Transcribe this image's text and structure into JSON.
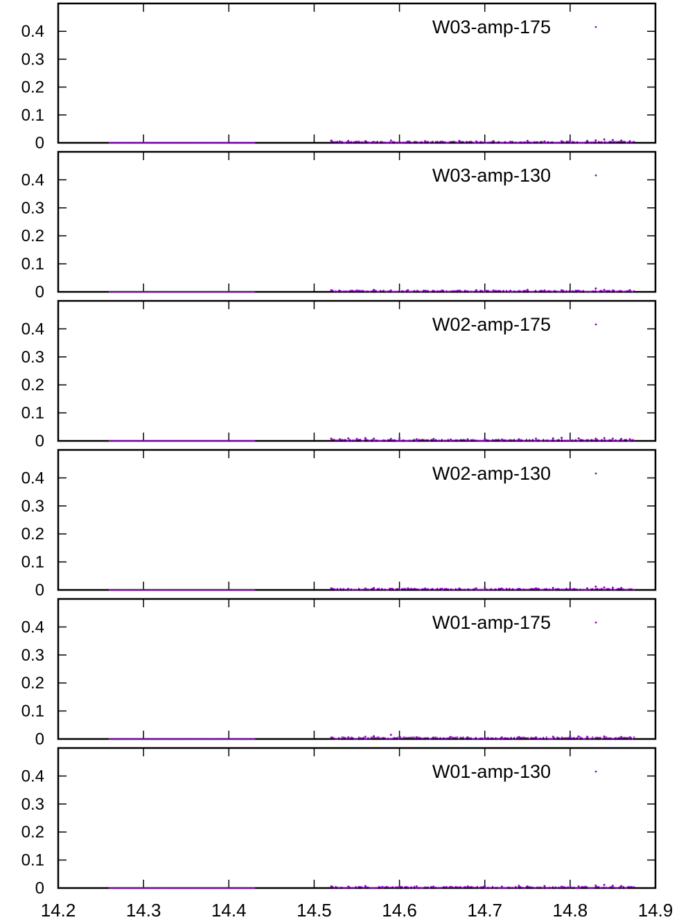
{
  "colors": {
    "points": "#9400d3",
    "frame": "#000000",
    "background": "#ffffff"
  },
  "chart_data": {
    "type": "scatter",
    "panels": 6,
    "shared_x_axis": true,
    "xlim": [
      14.2,
      14.9
    ],
    "ylim": [
      0,
      0.5
    ],
    "xticks": [
      14.2,
      14.3,
      14.4,
      14.5,
      14.6,
      14.7,
      14.8,
      14.9
    ],
    "xtick_labels": [
      "14.2",
      "14.3",
      "14.4",
      "14.5",
      "14.6",
      "14.7",
      "14.8",
      "14.9"
    ],
    "yticks": [
      0,
      0.1,
      0.2,
      0.3,
      0.4
    ],
    "ytick_labels": [
      "0",
      "0.1",
      "0.2",
      "0.3",
      "0.4"
    ],
    "legend_position": "top-right",
    "marker": "dot",
    "grid": false,
    "series": [
      {
        "name": "W03-amp-175",
        "segments": [
          {
            "x_range": [
              14.26,
              14.43
            ],
            "y": 0.0
          },
          {
            "x_range": [
              14.52,
              14.875
            ],
            "y_approx_max": 0.012
          }
        ],
        "x": [
          14.52,
          14.53,
          14.54,
          14.55,
          14.56,
          14.57,
          14.59,
          14.61,
          14.63,
          14.65,
          14.67,
          14.69,
          14.71,
          14.73,
          14.75,
          14.77,
          14.79,
          14.8,
          14.82,
          14.83,
          14.84,
          14.85,
          14.86,
          14.87
        ],
        "y": [
          0.008,
          0.005,
          0.007,
          0.004,
          0.006,
          0.003,
          0.008,
          0.005,
          0.006,
          0.004,
          0.007,
          0.005,
          0.006,
          0.004,
          0.007,
          0.005,
          0.006,
          0.008,
          0.007,
          0.009,
          0.012,
          0.01,
          0.008,
          0.006
        ]
      },
      {
        "name": "W03-amp-130",
        "segments": [
          {
            "x_range": [
              14.26,
              14.43
            ],
            "y": 0.0
          },
          {
            "x_range": [
              14.52,
              14.875
            ],
            "y_approx_max": 0.012
          }
        ],
        "x": [
          14.52,
          14.53,
          14.55,
          14.57,
          14.59,
          14.61,
          14.63,
          14.65,
          14.67,
          14.69,
          14.71,
          14.73,
          14.75,
          14.77,
          14.79,
          14.81,
          14.83,
          14.84,
          14.85,
          14.87
        ],
        "y": [
          0.006,
          0.004,
          0.005,
          0.007,
          0.005,
          0.006,
          0.004,
          0.005,
          0.004,
          0.006,
          0.005,
          0.004,
          0.007,
          0.005,
          0.006,
          0.004,
          0.012,
          0.007,
          0.005,
          0.006
        ]
      },
      {
        "name": "W02-amp-175",
        "segments": [
          {
            "x_range": [
              14.26,
              14.43
            ],
            "y": 0.0
          },
          {
            "x_range": [
              14.52,
              14.875
            ],
            "y_approx_max": 0.012
          }
        ],
        "x": [
          14.52,
          14.53,
          14.54,
          14.55,
          14.56,
          14.57,
          14.59,
          14.6,
          14.62,
          14.64,
          14.66,
          14.68,
          14.7,
          14.72,
          14.74,
          14.76,
          14.78,
          14.79,
          14.81,
          14.83,
          14.84,
          14.85,
          14.86,
          14.87
        ],
        "y": [
          0.008,
          0.006,
          0.009,
          0.007,
          0.01,
          0.008,
          0.007,
          0.009,
          0.006,
          0.007,
          0.005,
          0.006,
          0.007,
          0.005,
          0.006,
          0.008,
          0.009,
          0.011,
          0.009,
          0.008,
          0.01,
          0.008,
          0.007,
          0.006
        ]
      },
      {
        "name": "W02-amp-130",
        "segments": [
          {
            "x_range": [
              14.26,
              14.43
            ],
            "y": 0.0
          },
          {
            "x_range": [
              14.52,
              14.875
            ],
            "y_approx_max": 0.012
          }
        ],
        "x": [
          14.52,
          14.54,
          14.56,
          14.57,
          14.59,
          14.61,
          14.63,
          14.65,
          14.67,
          14.69,
          14.7,
          14.72,
          14.74,
          14.76,
          14.78,
          14.8,
          14.82,
          14.83,
          14.84,
          14.85,
          14.86
        ],
        "y": [
          0.006,
          0.004,
          0.005,
          0.007,
          0.004,
          0.006,
          0.005,
          0.004,
          0.005,
          0.006,
          0.008,
          0.005,
          0.004,
          0.006,
          0.007,
          0.005,
          0.006,
          0.012,
          0.009,
          0.008,
          0.007
        ]
      },
      {
        "name": "W01-amp-175",
        "segments": [
          {
            "x_range": [
              14.26,
              14.43
            ],
            "y": 0.0
          },
          {
            "x_range": [
              14.52,
              14.875
            ],
            "y_approx_max": 0.015
          }
        ],
        "x": [
          14.52,
          14.54,
          14.56,
          14.57,
          14.59,
          14.6,
          14.62,
          14.64,
          14.66,
          14.68,
          14.7,
          14.72,
          14.74,
          14.76,
          14.78,
          14.8,
          14.81,
          14.82,
          14.84,
          14.86,
          14.87
        ],
        "y": [
          0.005,
          0.006,
          0.008,
          0.01,
          0.015,
          0.009,
          0.006,
          0.005,
          0.007,
          0.006,
          0.005,
          0.006,
          0.007,
          0.006,
          0.008,
          0.01,
          0.009,
          0.008,
          0.009,
          0.007,
          0.006
        ]
      },
      {
        "name": "W01-amp-130",
        "segments": [
          {
            "x_range": [
              14.26,
              14.43
            ],
            "y": 0.0
          },
          {
            "x_range": [
              14.52,
              14.875
            ],
            "y_approx_max": 0.012
          }
        ],
        "x": [
          14.52,
          14.54,
          14.56,
          14.58,
          14.6,
          14.62,
          14.64,
          14.66,
          14.68,
          14.7,
          14.72,
          14.74,
          14.75,
          14.77,
          14.79,
          14.81,
          14.83,
          14.84,
          14.85,
          14.86
        ],
        "y": [
          0.006,
          0.005,
          0.007,
          0.004,
          0.005,
          0.006,
          0.005,
          0.004,
          0.006,
          0.007,
          0.005,
          0.008,
          0.006,
          0.007,
          0.005,
          0.006,
          0.009,
          0.011,
          0.008,
          0.007
        ]
      }
    ]
  }
}
